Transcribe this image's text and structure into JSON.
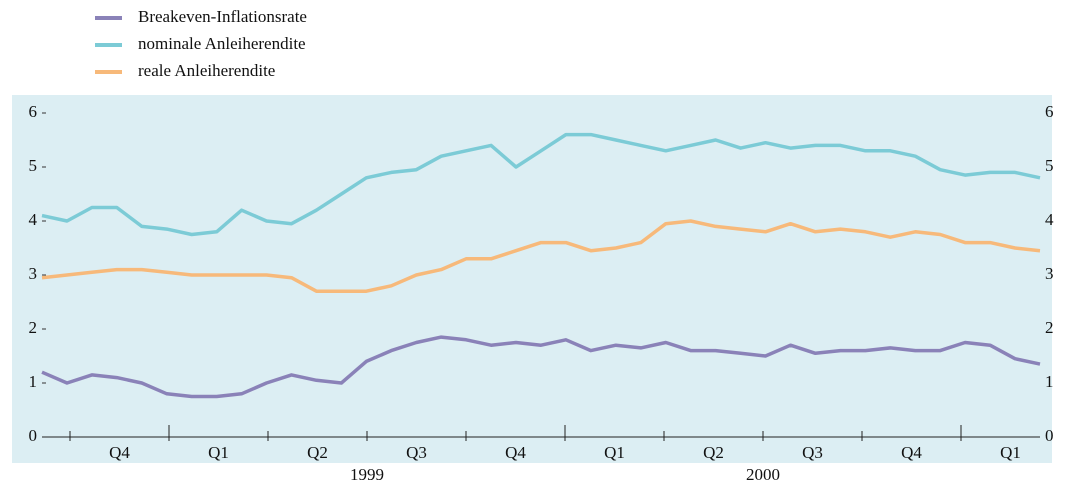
{
  "chart_data": {
    "type": "line",
    "series": [
      {
        "name": "Breakeven-Inflationsrate",
        "color": "#8a82b8",
        "values": [
          1.2,
          1.0,
          1.15,
          1.1,
          1.0,
          0.8,
          0.75,
          0.75,
          0.8,
          1.0,
          1.15,
          1.05,
          1.0,
          1.4,
          1.6,
          1.75,
          1.85,
          1.8,
          1.7,
          1.75,
          1.7,
          1.8,
          1.6,
          1.7,
          1.65,
          1.75,
          1.6,
          1.6,
          1.55,
          1.5,
          1.7,
          1.55,
          1.6,
          1.6,
          1.65,
          1.6,
          1.6,
          1.75,
          1.7,
          1.45,
          1.35
        ]
      },
      {
        "name": "nominale Anleiherendite",
        "color": "#7ccbd6",
        "values": [
          4.1,
          4.0,
          4.25,
          4.25,
          3.9,
          3.85,
          3.75,
          3.8,
          4.2,
          4.0,
          3.95,
          4.2,
          4.5,
          4.8,
          4.9,
          4.95,
          5.2,
          5.3,
          5.4,
          5.0,
          5.3,
          5.6,
          5.6,
          5.5,
          5.4,
          5.3,
          5.4,
          5.5,
          5.35,
          5.45,
          5.35,
          5.4,
          5.4,
          5.3,
          5.3,
          5.2,
          4.95,
          4.85,
          4.9,
          4.9,
          4.8
        ]
      },
      {
        "name": "reale Anleiherendite",
        "color": "#f7b97a",
        "values": [
          2.95,
          3.0,
          3.05,
          3.1,
          3.1,
          3.05,
          3.0,
          3.0,
          3.0,
          3.0,
          2.95,
          2.7,
          2.7,
          2.7,
          2.8,
          3.0,
          3.1,
          3.3,
          3.3,
          3.45,
          3.6,
          3.6,
          3.45,
          3.5,
          3.6,
          3.95,
          4.0,
          3.9,
          3.85,
          3.8,
          3.95,
          3.8,
          3.85,
          3.8,
          3.7,
          3.8,
          3.75,
          3.6,
          3.6,
          3.5,
          3.45
        ]
      }
    ],
    "quarters": [
      "Q4",
      "Q1",
      "Q2",
      "Q3",
      "Q4",
      "Q1",
      "Q2",
      "Q3",
      "Q4",
      "Q1"
    ],
    "years": [
      "1999",
      "2000"
    ],
    "ylim": [
      0,
      6
    ],
    "yticks": [
      0,
      1,
      2,
      3,
      4,
      5,
      6
    ],
    "background": "#dceef3"
  }
}
